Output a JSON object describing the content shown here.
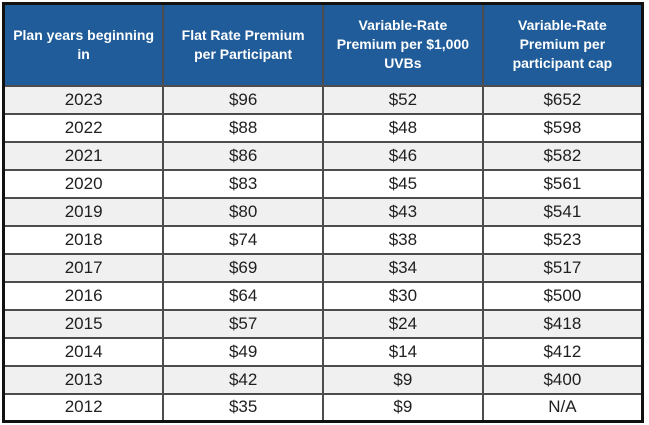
{
  "table": {
    "headers": [
      "Plan years beginning\nin",
      "Flat Rate Premium\nper Participant",
      "Variable-Rate\nPremium per $1,000\nUVBs",
      "Variable-Rate\nPremium per\nparticipant cap"
    ],
    "rows": [
      [
        "2023",
        "$96",
        "$52",
        "$652"
      ],
      [
        "2022",
        "$88",
        "$48",
        "$598"
      ],
      [
        "2021",
        "$86",
        "$46",
        "$582"
      ],
      [
        "2020",
        "$83",
        "$45",
        "$561"
      ],
      [
        "2019",
        "$80",
        "$43",
        "$541"
      ],
      [
        "2018",
        "$74",
        "$38",
        "$523"
      ],
      [
        "2017",
        "$69",
        "$34",
        "$517"
      ],
      [
        "2016",
        "$64",
        "$30",
        "$500"
      ],
      [
        "2015",
        "$57",
        "$24",
        "$418"
      ],
      [
        "2014",
        "$49",
        "$14",
        "$412"
      ],
      [
        "2013",
        "$42",
        "$9",
        "$400"
      ],
      [
        "2012",
        "$35",
        "$9",
        "N/A"
      ]
    ],
    "colors": {
      "header_bg": "#1F5C99",
      "header_text": "#FFFFFF",
      "row_bg": "#FFFFFF",
      "row_alt_bg": "#F0F0F0",
      "border": "#4D4D4D",
      "outer_border": "#111111"
    }
  },
  "chart_data": {
    "type": "table",
    "title": "",
    "columns": [
      "Plan years beginning in",
      "Flat Rate Premium per Participant",
      "Variable-Rate Premium per $1,000 UVBs",
      "Variable-Rate Premium per participant cap"
    ],
    "rows": [
      [
        "2023",
        "$96",
        "$52",
        "$652"
      ],
      [
        "2022",
        "$88",
        "$48",
        "$598"
      ],
      [
        "2021",
        "$86",
        "$46",
        "$582"
      ],
      [
        "2020",
        "$83",
        "$45",
        "$561"
      ],
      [
        "2019",
        "$80",
        "$43",
        "$541"
      ],
      [
        "2018",
        "$74",
        "$38",
        "$523"
      ],
      [
        "2017",
        "$69",
        "$34",
        "$517"
      ],
      [
        "2016",
        "$64",
        "$30",
        "$500"
      ],
      [
        "2015",
        "$57",
        "$24",
        "$418"
      ],
      [
        "2014",
        "$49",
        "$14",
        "$412"
      ],
      [
        "2013",
        "$42",
        "$9",
        "$400"
      ],
      [
        "2012",
        "$35",
        "$9",
        "N/A"
      ]
    ]
  }
}
